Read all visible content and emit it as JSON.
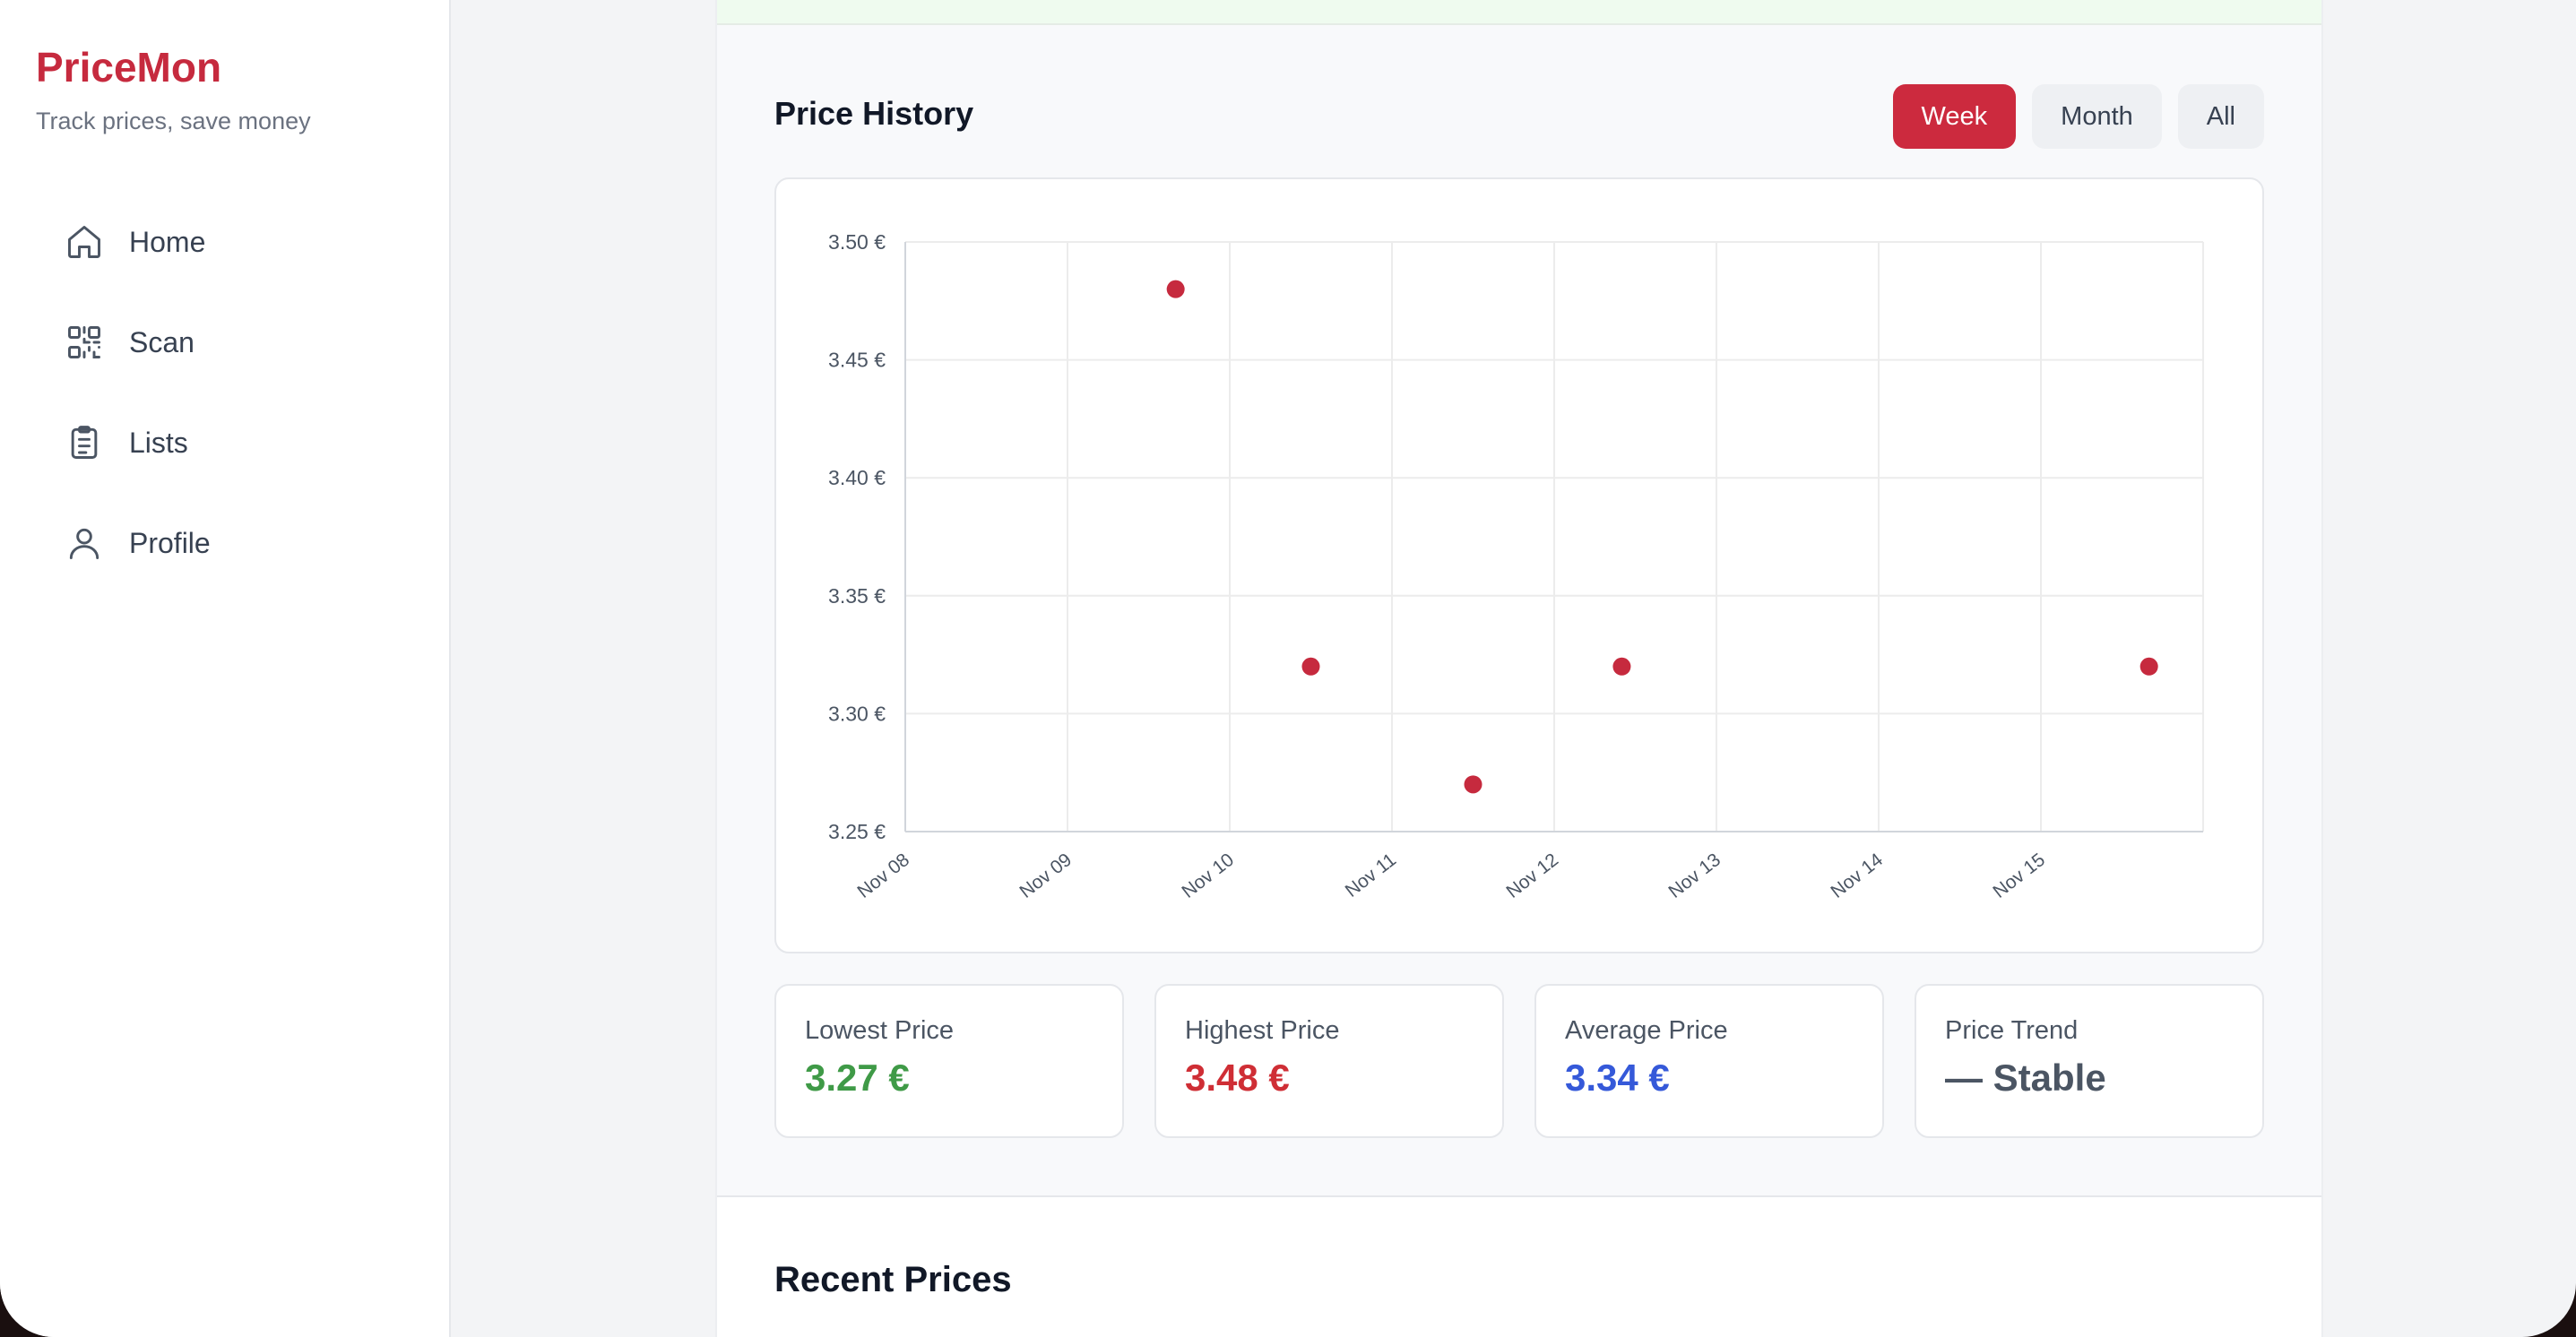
{
  "app": {
    "name": "PriceMon",
    "tagline": "Track prices, save money"
  },
  "sidebar": {
    "items": [
      {
        "label": "Home",
        "icon": "home-icon"
      },
      {
        "label": "Scan",
        "icon": "qr-scan-icon"
      },
      {
        "label": "Lists",
        "icon": "clipboard-list-icon"
      },
      {
        "label": "Profile",
        "icon": "user-icon"
      }
    ]
  },
  "price_history": {
    "title": "Price History",
    "ranges": [
      "Week",
      "Month",
      "All"
    ],
    "selected_range": "Week"
  },
  "chart_data": {
    "type": "scatter",
    "title": "",
    "xlabel": "",
    "ylabel": "",
    "x_ticks": [
      "Nov 08",
      "Nov 09",
      "Nov 10",
      "Nov 11",
      "Nov 12",
      "Nov 13",
      "Nov 14",
      "Nov 15"
    ],
    "y_ticks": [
      "3.50 €",
      "3.45 €",
      "3.40 €",
      "3.35 €",
      "3.30 €",
      "3.25 €"
    ],
    "ylim": [
      3.25,
      3.5
    ],
    "xlim_days": [
      0,
      8
    ],
    "points": [
      {
        "x": "Nov 09 16:00",
        "y": 3.48
      },
      {
        "x": "Nov 10 12:00",
        "y": 3.32
      },
      {
        "x": "Nov 11 12:00",
        "y": 3.27
      },
      {
        "x": "Nov 12 10:00",
        "y": 3.32
      },
      {
        "x": "Nov 15 16:00",
        "y": 3.32
      }
    ],
    "grid": true,
    "color": "#c62a3e"
  },
  "stats": [
    {
      "label": "Lowest Price",
      "value": "3.27 €",
      "color": "#3f9a47"
    },
    {
      "label": "Highest Price",
      "value": "3.48 €",
      "color": "#cf2e35"
    },
    {
      "label": "Average Price",
      "value": "3.34 €",
      "color": "#3559d9"
    },
    {
      "label": "Price Trend",
      "value": "— Stable",
      "color": "#4b5563"
    }
  ],
  "recent": {
    "title": "Recent Prices"
  }
}
